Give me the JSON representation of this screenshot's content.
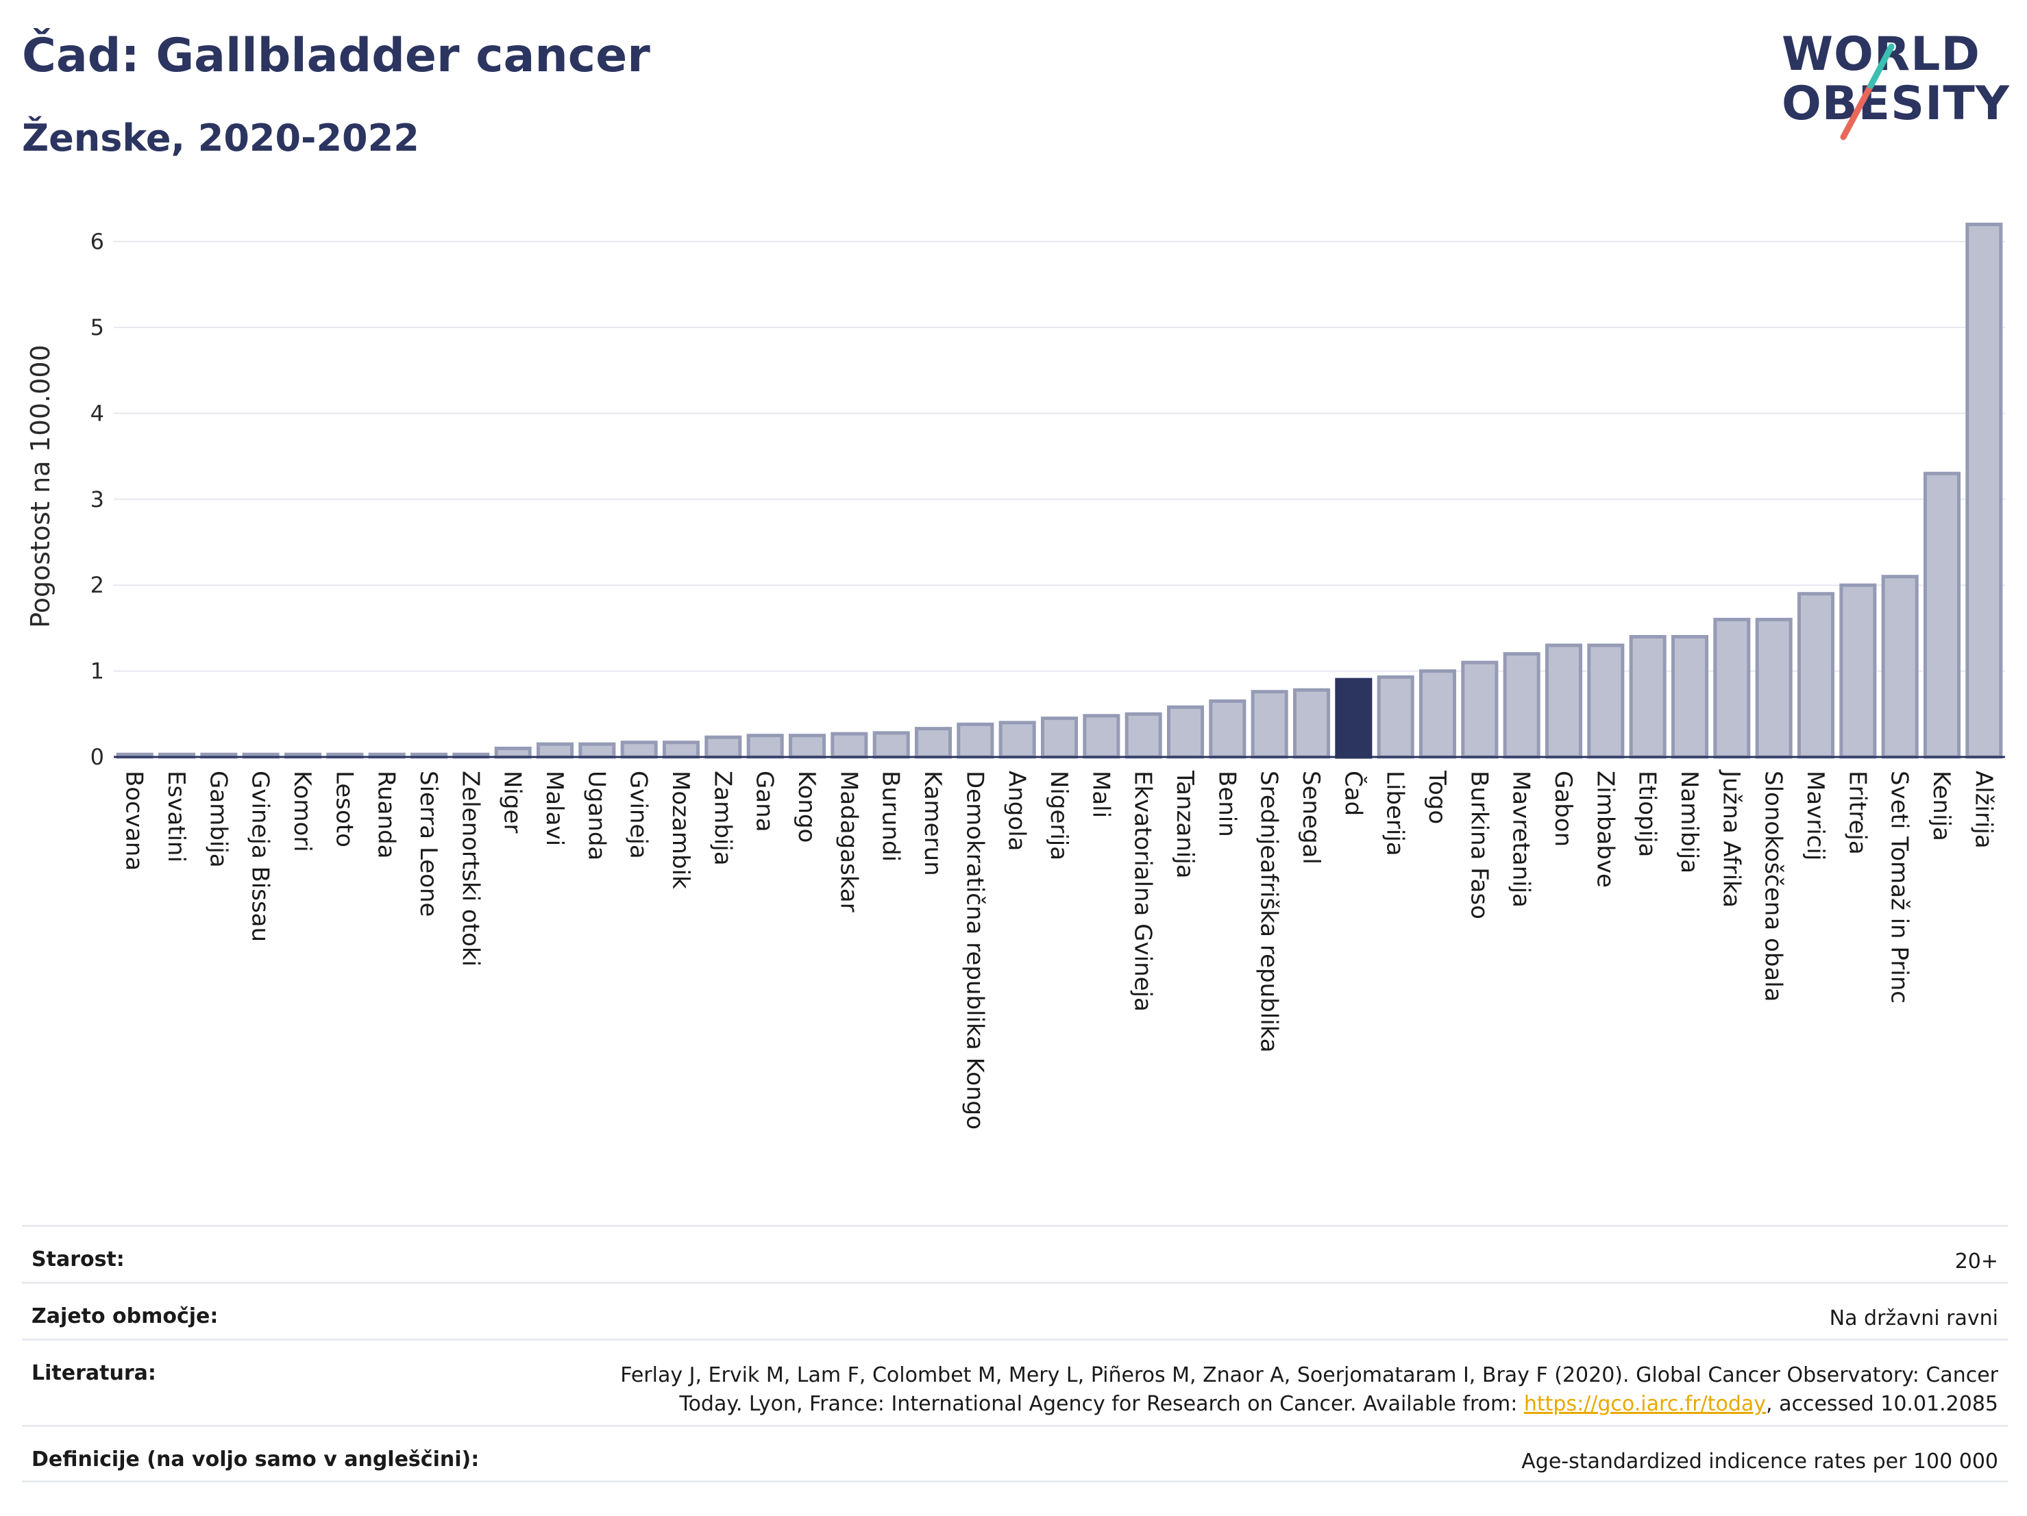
{
  "header": {
    "title": "Čad: Gallbladder cancer",
    "subtitle": "Ženske, 2020-2022"
  },
  "logo": {
    "line1": "WORLD",
    "line2": "OBESITY",
    "icon": "world-obesity-logo"
  },
  "colors": {
    "bar": "#bcc0d0",
    "bar_border": "#959bb5",
    "highlight": "#2c3560",
    "grid": "#e6e8ee",
    "axis": "#2c3560",
    "link": "#e9a800"
  },
  "chart_data": {
    "type": "bar",
    "ylabel": "Pogostost na 100.000",
    "ylim": [
      0,
      6.3
    ],
    "yticks": [
      0,
      1,
      2,
      3,
      4,
      5,
      6
    ],
    "grid": true,
    "highlight": "Čad",
    "categories": [
      "Bocvana",
      "Esvatini",
      "Gambija",
      "Gvineja Bissau",
      "Komori",
      "Lesoto",
      "Ruanda",
      "Sierra Leone",
      "Zelenortski otoki",
      "Niger",
      "Malavi",
      "Uganda",
      "Gvineja",
      "Mozambik",
      "Zambija",
      "Gana",
      "Kongo",
      "Madagaskar",
      "Burundi",
      "Kamerun",
      "Demokratična republika Kongo",
      "Angola",
      "Nigerija",
      "Mali",
      "Ekvatorialna Gvineja",
      "Tanzanija",
      "Benin",
      "Srednjeafriška republika",
      "Senegal",
      "Čad",
      "Liberija",
      "Togo",
      "Burkina Faso",
      "Mavretanija",
      "Gabon",
      "Zimbabve",
      "Etiopija",
      "Namibija",
      "Južna Afrika",
      "Slonokoščena obala",
      "Mavricij",
      "Eritreja",
      "Sveti Tomaž in Princ",
      "Kenija",
      "Alžirija"
    ],
    "values": [
      0.03,
      0.03,
      0.03,
      0.03,
      0.03,
      0.03,
      0.03,
      0.03,
      0.03,
      0.1,
      0.15,
      0.15,
      0.17,
      0.17,
      0.23,
      0.25,
      0.25,
      0.27,
      0.28,
      0.33,
      0.38,
      0.4,
      0.45,
      0.48,
      0.5,
      0.58,
      0.65,
      0.76,
      0.78,
      0.9,
      0.93,
      1.0,
      1.1,
      1.2,
      1.3,
      1.3,
      1.4,
      1.4,
      1.6,
      1.6,
      1.9,
      2.0,
      2.1,
      3.3,
      6.2
    ]
  },
  "meta": {
    "age_label": "Starost:",
    "age_value": "20+",
    "area_label": "Zajeto območje:",
    "area_value": "Na državni ravni",
    "lit_label": "Literatura:",
    "lit_line1": "Ferlay J, Ervik M, Lam F, Colombet M, Mery L, Piñeros M, Znaor A, Soerjomataram I, Bray F (2020). Global Cancer Observatory: Cancer",
    "lit_line2_pre": "Today. Lyon, France: International Agency for Research on Cancer. Available from: ",
    "lit_link": "https://gco.iarc.fr/today",
    "lit_line2_post": ", accessed 10.01.2085",
    "def_label": "Definicije (na voljo samo v angleščini):",
    "def_value": "Age-standardized indicence rates per 100 000"
  }
}
